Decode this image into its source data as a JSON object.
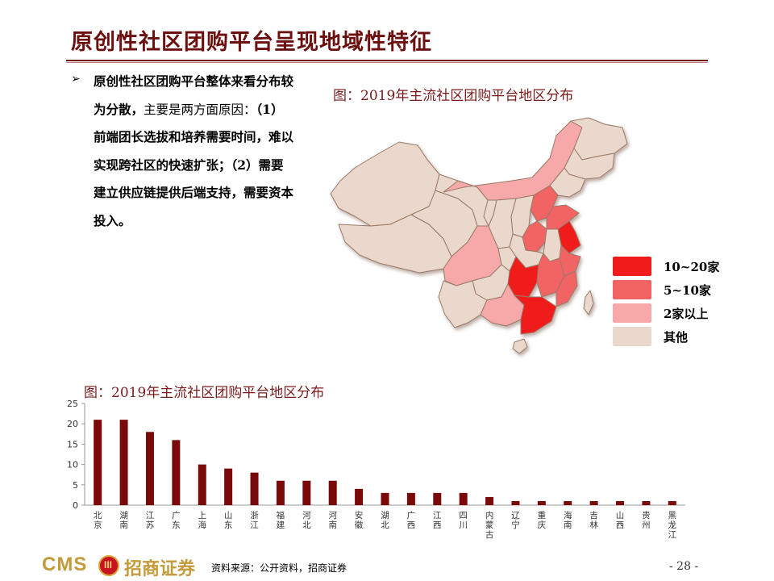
{
  "title": "原创性社区团购平台呈现地域性特征",
  "bullet": {
    "arrow": "➢",
    "bold_lead": "原创性社区团购平台整体来看分布较为分散，",
    "normal_part": "主要是两方面原因：",
    "bold_tail": "（1）前端团长选拔和培养需要时间，难以实现跨社区的快速扩张；（2）需要建立供应链提供后端支持，需要资本投入。"
  },
  "map": {
    "caption": "图：2019年主流社区团购平台地区分布",
    "legend": [
      {
        "label": "10~20家",
        "color": "#f01c1c"
      },
      {
        "label": "5~10家",
        "color": "#f26464"
      },
      {
        "label": "2家以上",
        "color": "#f7a8a8"
      },
      {
        "label": "其他",
        "color": "#ead8cc"
      }
    ]
  },
  "chart_data": {
    "type": "bar",
    "title": "图：2019年主流社区团购平台地区分布",
    "categories": [
      "北京",
      "湖南",
      "江苏",
      "广东",
      "上海",
      "山东",
      "浙江",
      "福建",
      "河北",
      "河南",
      "安徽",
      "湖北",
      "广西",
      "江西",
      "四川",
      "内蒙古",
      "辽宁",
      "重庆",
      "海南",
      "吉林",
      "山西",
      "贵州",
      "黑龙江"
    ],
    "values": [
      21,
      21,
      18,
      16,
      10,
      9,
      8,
      6,
      6,
      6,
      4,
      3,
      3,
      3,
      3,
      2,
      1,
      1,
      1,
      1,
      1,
      1,
      1
    ],
    "yticks": [
      "0",
      "5",
      "10",
      "15",
      "20",
      "25"
    ],
    "ylim": [
      0,
      25
    ],
    "bar_color": "#7a0a0a",
    "grid": false
  },
  "footer": {
    "cms": "CMS",
    "badge": "III",
    "company": "招商证券",
    "source": "资料来源：公开资料，招商证券",
    "page": "- 28 -"
  }
}
